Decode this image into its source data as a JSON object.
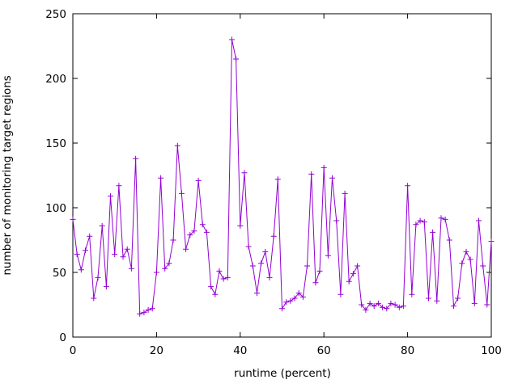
{
  "figure": {
    "background": "#ffffff",
    "frame_color": "#000000",
    "text_color": "#000000",
    "line_color": "#9400d3"
  },
  "chart_data": {
    "type": "line",
    "marker": "plus",
    "title": "",
    "xlabel": "runtime (percent)",
    "ylabel": "number of monitoring target regions",
    "xlim": [
      0,
      100
    ],
    "ylim": [
      0,
      250
    ],
    "xticks": [
      0,
      20,
      40,
      60,
      80,
      100
    ],
    "yticks": [
      0,
      50,
      100,
      150,
      200,
      250
    ],
    "grid": false,
    "legend": "none",
    "x": [
      0,
      1,
      2,
      3,
      4,
      5,
      6,
      7,
      8,
      9,
      10,
      11,
      12,
      13,
      14,
      15,
      16,
      17,
      18,
      19,
      20,
      21,
      22,
      23,
      24,
      25,
      26,
      27,
      28,
      29,
      30,
      31,
      32,
      33,
      34,
      35,
      36,
      37,
      38,
      39,
      40,
      41,
      42,
      43,
      44,
      45,
      46,
      47,
      48,
      49,
      50,
      51,
      52,
      53,
      54,
      55,
      56,
      57,
      58,
      59,
      60,
      61,
      62,
      63,
      64,
      65,
      66,
      67,
      68,
      69,
      70,
      71,
      72,
      73,
      74,
      75,
      76,
      77,
      78,
      79,
      80,
      81,
      82,
      83,
      84,
      85,
      86,
      87,
      88,
      89,
      90,
      91,
      92,
      93,
      94,
      95,
      96,
      97,
      98,
      99,
      100
    ],
    "y": [
      91,
      64,
      52,
      67,
      78,
      30,
      46,
      86,
      39,
      109,
      64,
      117,
      62,
      68,
      53,
      138,
      18,
      19,
      21,
      22,
      50,
      123,
      53,
      57,
      75,
      148,
      111,
      68,
      79,
      82,
      121,
      87,
      81,
      39,
      33,
      51,
      45,
      46,
      230,
      215,
      86,
      127,
      70,
      55,
      34,
      57,
      66,
      46,
      78,
      122,
      22,
      27,
      28,
      30,
      34,
      31,
      55,
      126,
      42,
      51,
      131,
      63,
      123,
      90,
      33,
      111,
      43,
      49,
      55,
      25,
      21,
      26,
      24,
      26,
      23,
      22,
      26,
      25,
      23,
      24,
      117,
      33,
      87,
      90,
      89,
      30,
      81,
      28,
      92,
      91,
      75,
      24,
      30,
      57,
      66,
      60,
      26,
      90,
      55,
      25,
      74
    ]
  }
}
